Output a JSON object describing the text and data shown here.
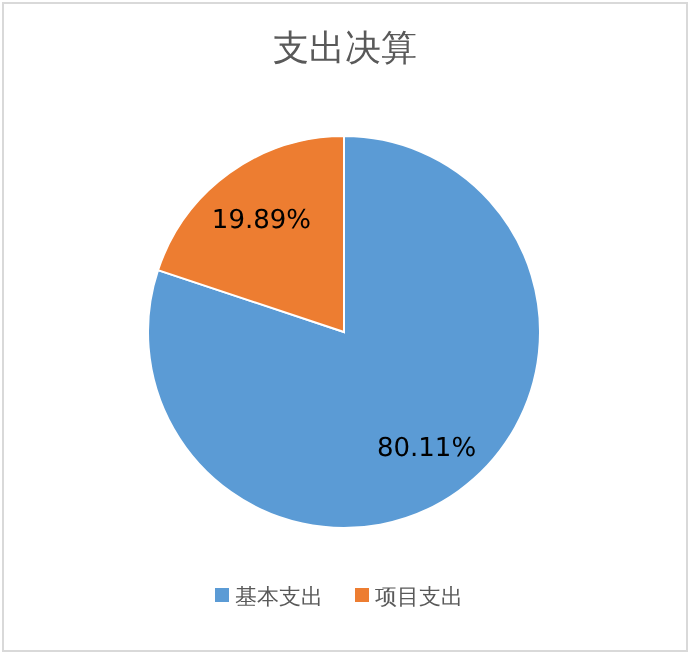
{
  "chart_data": {
    "type": "pie",
    "title": "支出决算",
    "categories": [
      "基本支出",
      "项目支出"
    ],
    "values": [
      80.11,
      19.89
    ],
    "colors": [
      "#5b9bd5",
      "#ed7d31"
    ],
    "value_labels": [
      "80.11%",
      "19.89%"
    ],
    "legend": "bottom"
  }
}
